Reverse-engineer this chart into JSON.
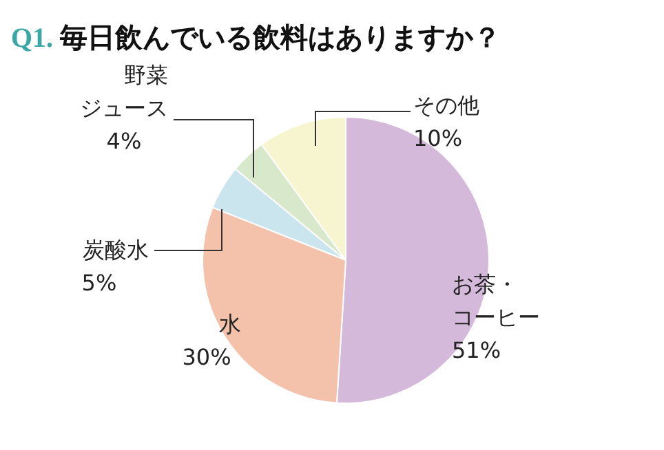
{
  "chart_data": {
    "type": "pie",
    "title": "Q1. 毎日飲んでいる飲料はありますか？",
    "categories": [
      "お茶・コーヒー",
      "水",
      "炭酸水",
      "野菜ジュース",
      "その他"
    ],
    "values": [
      51,
      30,
      5,
      4,
      10
    ],
    "value_labels": [
      "51%",
      "30%",
      "5%",
      "4%",
      "10%"
    ],
    "colors": [
      "#d4b9da",
      "#f4c1aa",
      "#cbe5ee",
      "#d8e9cb",
      "#f7f5cf"
    ]
  }
}
